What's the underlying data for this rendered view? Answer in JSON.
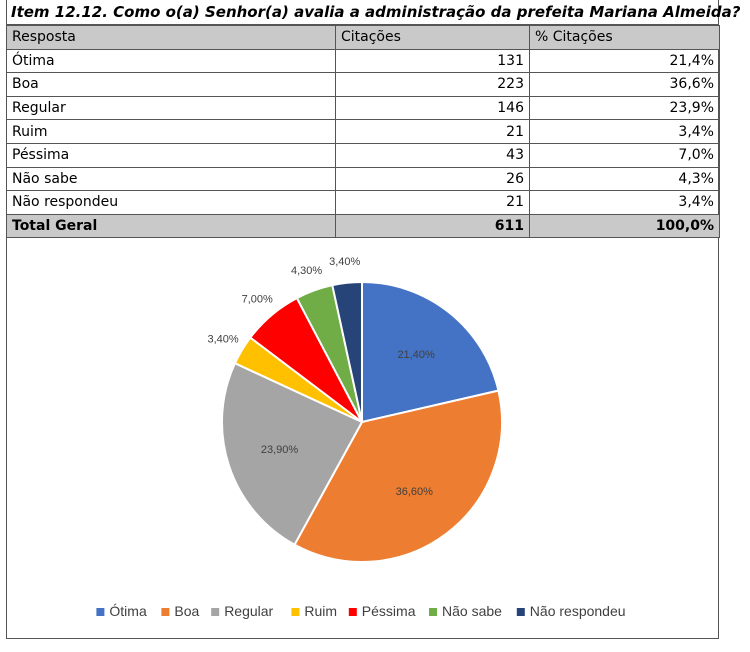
{
  "title": "Item 12.12. Como o(a) Senhor(a) avalia a administração da prefeita Mariana Almeida?",
  "table": {
    "headers": [
      "Resposta",
      "Citações",
      "% Citações"
    ],
    "rows": [
      [
        "Ótima",
        "131",
        "21,4%"
      ],
      [
        "Boa",
        "223",
        "36,6%"
      ],
      [
        "Regular",
        "146",
        "23,9%"
      ],
      [
        "Ruim",
        "21",
        "3,4%"
      ],
      [
        "Péssima",
        "43",
        "7,0%"
      ],
      [
        "Não sabe",
        "26",
        "4,3%"
      ],
      [
        "Não respondeu",
        "21",
        "3,4%"
      ]
    ],
    "total": [
      "Total Geral",
      "611",
      "100,0%"
    ]
  },
  "chart_data": {
    "type": "pie",
    "categories": [
      "Ótima",
      "Boa",
      "Regular",
      "Ruim",
      "Péssima",
      "Não sabe",
      "Não respondeu"
    ],
    "values": [
      21.4,
      36.6,
      23.9,
      3.4,
      7.0,
      4.3,
      3.4
    ],
    "labels": [
      "21,40%",
      "36,60%",
      "23,90%",
      "3,40%",
      "7,00%",
      "4,30%",
      "3,40%"
    ],
    "colors": [
      "#4472c4",
      "#ed7d31",
      "#a5a5a5",
      "#ffc000",
      "#ff0000",
      "#70ad47",
      "#264478"
    ],
    "legend_position": "bottom"
  }
}
